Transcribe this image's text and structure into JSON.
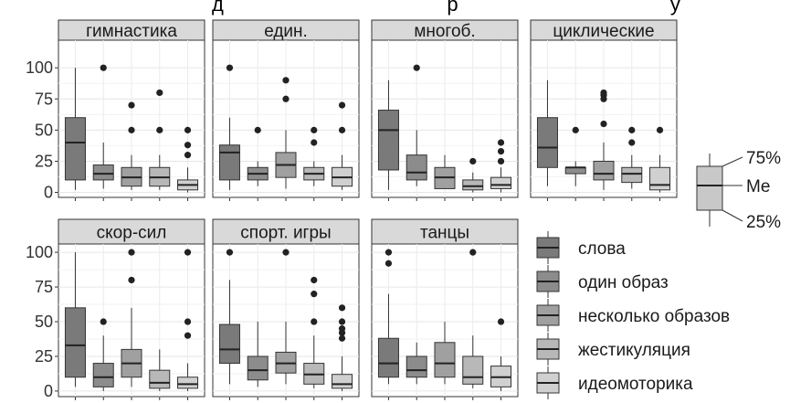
{
  "title_fragment": "д                                        р                                      у",
  "chart_data": {
    "type": "box",
    "ylim": [
      -4,
      106
    ],
    "y_ticks": [
      0,
      25,
      50,
      75,
      100
    ],
    "y_tick_labels": [
      "0",
      "25",
      "50",
      "75",
      "100"
    ],
    "category_labels": [
      "слова",
      "один образ",
      "несколько образов",
      "жестикуляция",
      "идеомоторика"
    ],
    "category_colors": [
      "#7a7a7a",
      "#8c8c8c",
      "#a0a0a0",
      "#b8b8b8",
      "#d0d0d0"
    ],
    "panels": [
      {
        "name": "гимнастика",
        "boxes": [
          {
            "low": 2,
            "q1": 10,
            "median": 40,
            "q3": 60,
            "high": 100,
            "outliers": []
          },
          {
            "low": 3,
            "q1": 10,
            "median": 15,
            "q3": 22,
            "high": 40,
            "outliers": [
              100
            ]
          },
          {
            "low": 2,
            "q1": 5,
            "median": 12,
            "q3": 20,
            "high": 30,
            "outliers": [
              50,
              70
            ]
          },
          {
            "low": 2,
            "q1": 5,
            "median": 12,
            "q3": 20,
            "high": 30,
            "outliers": [
              50,
              80
            ]
          },
          {
            "low": 0,
            "q1": 2,
            "median": 6,
            "q3": 10,
            "high": 20,
            "outliers": [
              30,
              38,
              50
            ]
          }
        ]
      },
      {
        "name": "един.",
        "boxes": [
          {
            "low": 2,
            "q1": 10,
            "median": 32,
            "q3": 38,
            "high": 60,
            "outliers": [
              100
            ]
          },
          {
            "low": 5,
            "q1": 10,
            "median": 15,
            "q3": 20,
            "high": 25,
            "outliers": [
              50
            ]
          },
          {
            "low": 3,
            "q1": 12,
            "median": 22,
            "q3": 32,
            "high": 50,
            "outliers": [
              75,
              90
            ]
          },
          {
            "low": 5,
            "q1": 10,
            "median": 15,
            "q3": 20,
            "high": 25,
            "outliers": [
              40,
              50
            ]
          },
          {
            "low": 2,
            "q1": 5,
            "median": 12,
            "q3": 20,
            "high": 30,
            "outliers": [
              50,
              70
            ]
          }
        ]
      },
      {
        "name": "многоб.",
        "boxes": [
          {
            "low": 2,
            "q1": 18,
            "median": 50,
            "q3": 66,
            "high": 90,
            "outliers": []
          },
          {
            "low": 5,
            "q1": 10,
            "median": 16,
            "q3": 30,
            "high": 50,
            "outliers": [
              100
            ]
          },
          {
            "low": 3,
            "q1": 3,
            "median": 12,
            "q3": 20,
            "high": 30,
            "outliers": []
          },
          {
            "low": 0,
            "q1": 2,
            "median": 5,
            "q3": 10,
            "high": 16,
            "outliers": [
              25
            ]
          },
          {
            "low": 0,
            "q1": 3,
            "median": 6,
            "q3": 12,
            "high": 20,
            "outliers": [
              25,
              33,
              40
            ]
          }
        ]
      },
      {
        "name": "циклические",
        "boxes": [
          {
            "low": 5,
            "q1": 20,
            "median": 36,
            "q3": 60,
            "high": 90,
            "outliers": []
          },
          {
            "low": 5,
            "q1": 15,
            "median": 20,
            "q3": 20,
            "high": 25,
            "outliers": [
              50
            ]
          },
          {
            "low": 2,
            "q1": 10,
            "median": 15,
            "q3": 25,
            "high": 40,
            "outliers": [
              55,
              75,
              78,
              80
            ]
          },
          {
            "low": 3,
            "q1": 8,
            "median": 15,
            "q3": 20,
            "high": 30,
            "outliers": [
              40,
              50
            ]
          },
          {
            "low": 0,
            "q1": 2,
            "median": 6,
            "q3": 20,
            "high": 30,
            "outliers": [
              50
            ]
          }
        ]
      },
      {
        "name": "скор-сил",
        "boxes": [
          {
            "low": 3,
            "q1": 10,
            "median": 33,
            "q3": 60,
            "high": 100,
            "outliers": []
          },
          {
            "low": 0,
            "q1": 3,
            "median": 10,
            "q3": 20,
            "high": 40,
            "outliers": [
              50
            ]
          },
          {
            "low": 3,
            "q1": 10,
            "median": 20,
            "q3": 30,
            "high": 60,
            "outliers": [
              80,
              100
            ]
          },
          {
            "low": 0,
            "q1": 2,
            "median": 6,
            "q3": 15,
            "high": 30,
            "outliers": []
          },
          {
            "low": 0,
            "q1": 2,
            "median": 5,
            "q3": 10,
            "high": 20,
            "outliers": [
              40,
              50,
              100
            ]
          }
        ]
      },
      {
        "name": "спорт. игры",
        "boxes": [
          {
            "low": 5,
            "q1": 20,
            "median": 30,
            "q3": 48,
            "high": 80,
            "outliers": [
              100
            ]
          },
          {
            "low": 3,
            "q1": 8,
            "median": 15,
            "q3": 25,
            "high": 50,
            "outliers": []
          },
          {
            "low": 5,
            "q1": 13,
            "median": 20,
            "q3": 28,
            "high": 50,
            "outliers": [
              100
            ]
          },
          {
            "low": 2,
            "q1": 5,
            "median": 12,
            "q3": 20,
            "high": 40,
            "outliers": [
              50,
              70,
              80
            ]
          },
          {
            "low": 0,
            "q1": 2,
            "median": 5,
            "q3": 12,
            "high": 25,
            "outliers": [
              38,
              42,
              45,
              50,
              60
            ]
          }
        ]
      },
      {
        "name": "танцы",
        "boxes": [
          {
            "low": 5,
            "q1": 10,
            "median": 20,
            "q3": 38,
            "high": 70,
            "outliers": [
              92,
              100
            ]
          },
          {
            "low": 5,
            "q1": 10,
            "median": 15,
            "q3": 25,
            "high": 35,
            "outliers": []
          },
          {
            "low": 5,
            "q1": 10,
            "median": 20,
            "q3": 35,
            "high": 50,
            "outliers": []
          },
          {
            "low": 2,
            "q1": 5,
            "median": 10,
            "q3": 25,
            "high": 40,
            "outliers": [
              100
            ]
          },
          {
            "low": 0,
            "q1": 3,
            "median": 10,
            "q3": 18,
            "high": 25,
            "outliers": [
              50
            ]
          }
        ]
      }
    ]
  },
  "box_key": {
    "upper_label": "75%",
    "median_label": "Me",
    "lower_label": "25%"
  }
}
